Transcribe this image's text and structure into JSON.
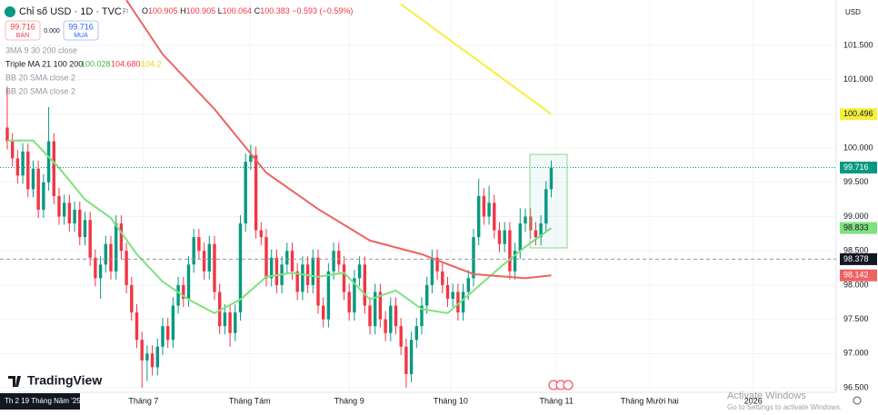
{
  "header": {
    "symbol": "Chỉ số USD · 1D · TVC",
    "quote": [
      "O",
      "100.905",
      "H",
      "100.905",
      "L",
      "100.064",
      "C",
      "100.383",
      "−0.593 (−0.59%)"
    ],
    "sell_price": "99.716",
    "sell_label": "BÁN",
    "spread": "0.000",
    "buy_price": "99.716",
    "buy_label": "MUA",
    "indicators": [
      "3MA 9 30 200 close",
      "Triple MA 21 100 200",
      "BB 20 SMA close 2",
      "BB 20 SMA close 2"
    ],
    "ma_values": [
      "100.028",
      "104.680",
      "104.2"
    ],
    "currency": "USD",
    "logo": "TradingView",
    "date_box": "Th 2 19 Tháng Năm '25",
    "watermark": [
      "Activate Windows",
      "Go to Settings to activate Windows."
    ]
  },
  "chart_data": {
    "type": "candlestick",
    "up_color": "#089981",
    "down_color": "#f23645",
    "ohlc": [
      [
        100.3,
        100.9,
        99.98,
        100.1
      ],
      [
        100.1,
        100.22,
        99.73,
        99.85
      ],
      [
        99.85,
        99.97,
        99.48,
        99.6
      ],
      [
        99.6,
        100.07,
        99.48,
        99.95
      ],
      [
        99.95,
        100.07,
        99.28,
        99.4
      ],
      [
        99.4,
        99.82,
        99.28,
        99.7
      ],
      [
        99.7,
        99.82,
        98.98,
        99.1
      ],
      [
        99.1,
        99.62,
        98.98,
        99.5
      ],
      [
        99.5,
        100.6,
        99.38,
        100.1
      ],
      [
        100.1,
        100.22,
        99.18,
        99.3
      ],
      [
        99.3,
        99.42,
        98.88,
        99.0
      ],
      [
        99.0,
        99.32,
        98.88,
        99.2
      ],
      [
        99.2,
        99.32,
        98.78,
        98.9
      ],
      [
        98.9,
        99.22,
        98.78,
        99.1
      ],
      [
        99.1,
        99.22,
        98.58,
        98.7
      ],
      [
        98.7,
        99.07,
        98.58,
        98.95
      ],
      [
        98.95,
        99.07,
        98.28,
        98.4
      ],
      [
        98.4,
        98.52,
        97.98,
        98.1
      ],
      [
        98.1,
        98.42,
        97.8,
        98.3
      ],
      [
        98.3,
        98.72,
        98.18,
        98.6
      ],
      [
        98.6,
        98.72,
        98.08,
        98.2
      ],
      [
        98.2,
        99.02,
        98.08,
        98.9
      ],
      [
        98.9,
        99.02,
        98.38,
        98.5
      ],
      [
        98.5,
        98.62,
        97.88,
        98.0
      ],
      [
        98.0,
        98.12,
        97.48,
        97.6
      ],
      [
        97.6,
        97.72,
        97.08,
        97.2
      ],
      [
        97.2,
        97.32,
        96.5,
        96.9
      ],
      [
        96.9,
        97.12,
        96.6,
        97.0
      ],
      [
        97.0,
        97.12,
        96.68,
        96.8
      ],
      [
        96.8,
        97.22,
        96.68,
        97.1
      ],
      [
        97.1,
        97.52,
        96.98,
        97.4
      ],
      [
        97.4,
        97.52,
        97.08,
        97.2
      ],
      [
        97.2,
        97.82,
        97.08,
        97.7
      ],
      [
        97.7,
        98.12,
        97.58,
        98.0
      ],
      [
        98.0,
        98.12,
        97.68,
        97.8
      ],
      [
        97.8,
        98.42,
        97.68,
        98.3
      ],
      [
        98.3,
        98.82,
        98.18,
        98.7
      ],
      [
        98.7,
        98.82,
        98.38,
        98.5
      ],
      [
        98.5,
        98.62,
        98.08,
        98.2
      ],
      [
        98.2,
        98.72,
        98.08,
        98.6
      ],
      [
        98.6,
        98.72,
        97.78,
        97.9
      ],
      [
        97.9,
        98.02,
        97.28,
        97.4
      ],
      [
        97.4,
        97.72,
        97.28,
        97.6
      ],
      [
        97.6,
        97.72,
        97.1,
        97.3
      ],
      [
        97.3,
        97.72,
        97.18,
        97.6
      ],
      [
        97.6,
        99.02,
        97.48,
        98.9
      ],
      [
        98.9,
        99.92,
        98.78,
        99.8
      ],
      [
        99.8,
        100.05,
        99.68,
        99.9
      ],
      [
        99.9,
        100.02,
        98.68,
        98.8
      ],
      [
        98.8,
        98.92,
        98.58,
        98.7
      ],
      [
        98.7,
        98.82,
        97.98,
        98.1
      ],
      [
        98.1,
        98.52,
        97.98,
        98.4
      ],
      [
        98.4,
        98.52,
        97.88,
        98.0
      ],
      [
        98.0,
        98.42,
        97.88,
        98.3
      ],
      [
        98.3,
        98.62,
        98.18,
        98.5
      ],
      [
        98.5,
        98.62,
        98.08,
        98.2
      ],
      [
        98.2,
        98.32,
        97.78,
        97.9
      ],
      [
        97.9,
        98.42,
        97.78,
        98.3
      ],
      [
        98.3,
        98.42,
        97.88,
        98.0
      ],
      [
        98.0,
        98.52,
        97.88,
        98.4
      ],
      [
        98.4,
        98.52,
        97.58,
        97.7
      ],
      [
        97.7,
        97.82,
        97.38,
        97.5
      ],
      [
        97.5,
        98.32,
        97.38,
        98.2
      ],
      [
        98.2,
        98.62,
        98.08,
        98.5
      ],
      [
        98.5,
        98.62,
        98.18,
        98.3
      ],
      [
        98.3,
        98.42,
        97.78,
        97.9
      ],
      [
        97.9,
        98.02,
        97.48,
        97.6
      ],
      [
        97.6,
        98.22,
        97.48,
        98.1
      ],
      [
        98.1,
        98.42,
        97.98,
        98.3
      ],
      [
        98.3,
        98.42,
        97.58,
        97.7
      ],
      [
        97.7,
        97.82,
        97.28,
        97.4
      ],
      [
        97.4,
        98.02,
        97.28,
        97.9
      ],
      [
        97.9,
        98.02,
        97.38,
        97.5
      ],
      [
        97.5,
        97.62,
        97.18,
        97.3
      ],
      [
        97.3,
        97.82,
        97.18,
        97.7
      ],
      [
        97.7,
        97.82,
        97.28,
        97.4
      ],
      [
        97.4,
        97.52,
        96.98,
        97.1
      ],
      [
        97.1,
        97.22,
        96.5,
        96.7
      ],
      [
        96.7,
        97.32,
        96.58,
        97.2
      ],
      [
        97.2,
        97.52,
        97.08,
        97.4
      ],
      [
        97.4,
        97.82,
        97.28,
        97.7
      ],
      [
        97.7,
        98.12,
        97.58,
        98.0
      ],
      [
        98.0,
        98.52,
        97.88,
        98.4
      ],
      [
        98.4,
        98.52,
        98.08,
        98.2
      ],
      [
        98.2,
        98.32,
        97.88,
        98.0
      ],
      [
        98.0,
        98.12,
        97.68,
        97.8
      ],
      [
        97.8,
        98.02,
        97.68,
        97.9
      ],
      [
        97.9,
        98.02,
        97.48,
        97.6
      ],
      [
        97.6,
        98.02,
        97.48,
        97.9
      ],
      [
        97.9,
        98.22,
        97.78,
        98.1
      ],
      [
        98.1,
        98.82,
        97.98,
        98.7
      ],
      [
        98.7,
        99.55,
        98.58,
        99.3
      ],
      [
        99.3,
        99.42,
        98.88,
        99.0
      ],
      [
        99.0,
        99.45,
        98.88,
        99.2
      ],
      [
        99.2,
        99.32,
        98.68,
        98.8
      ],
      [
        98.8,
        98.92,
        98.48,
        98.6
      ],
      [
        98.6,
        98.92,
        98.48,
        98.8
      ],
      [
        98.8,
        98.92,
        98.08,
        98.2
      ],
      [
        98.2,
        98.62,
        98.08,
        98.5
      ],
      [
        98.5,
        99.12,
        98.38,
        98.9
      ],
      [
        98.9,
        99.12,
        98.78,
        99.0
      ],
      [
        99.0,
        99.12,
        98.68,
        98.8
      ],
      [
        98.8,
        98.92,
        98.58,
        98.7
      ],
      [
        98.7,
        99.02,
        98.58,
        98.9
      ],
      [
        98.9,
        99.52,
        98.78,
        99.4
      ],
      [
        99.4,
        99.82,
        99.28,
        99.716
      ]
    ],
    "lines": [
      {
        "color": "#7ee27e",
        "x": [
          0,
          5,
          10,
          15,
          20,
          25,
          30,
          35,
          40,
          45,
          50,
          55,
          60,
          65,
          70,
          75,
          80,
          85,
          90,
          95,
          100,
          105
        ],
        "values": [
          100.11,
          100.11,
          99.71,
          99.25,
          98.98,
          98.45,
          98.05,
          97.79,
          97.59,
          97.79,
          98.12,
          98.18,
          98.12,
          98.18,
          97.79,
          97.92,
          97.65,
          97.59,
          97.92,
          98.25,
          98.56,
          98.833
        ]
      },
      {
        "color": "#ef6262",
        "x": [
          23,
          30,
          40,
          50,
          60,
          70,
          80,
          90,
          100,
          105
        ],
        "values": [
          102.16,
          101.37,
          100.57,
          99.64,
          99.11,
          98.65,
          98.45,
          98.16,
          98.1,
          98.142
        ]
      },
      {
        "color": "#f5ef3d",
        "x": [
          76,
          105
        ],
        "values": [
          102.1,
          100.496
        ]
      }
    ],
    "crosshair": 98.378,
    "xlim": [
      -1.4,
      160
    ],
    "ylim": [
      96.434,
      102.163
    ],
    "xticks": [
      {
        "value": 26.3,
        "label": "Tháng 7"
      },
      {
        "value": 46.8,
        "label": "Tháng Tám"
      },
      {
        "value": 66,
        "label": "Tháng 9"
      },
      {
        "value": 85.6,
        "label": "Tháng 10"
      },
      {
        "value": 106,
        "label": "Tháng 11"
      },
      {
        "value": 124,
        "label": "Tháng Mười hai"
      },
      {
        "value": 144,
        "label": "2026"
      }
    ],
    "yticks": [
      {
        "value": 96.5,
        "label": "96.500"
      },
      {
        "value": 97,
        "label": "97.000"
      },
      {
        "value": 97.5,
        "label": "97.500"
      },
      {
        "value": 98,
        "label": "98.000"
      },
      {
        "value": 98.5,
        "label": "98.500"
      },
      {
        "value": 99,
        "label": "99.000"
      },
      {
        "value": 99.5,
        "label": "99.500"
      },
      {
        "value": 100,
        "label": "100.000"
      },
      {
        "value": 100.5,
        "label": "100.500"
      },
      {
        "value": 101,
        "label": "101.000"
      },
      {
        "value": 101.5,
        "label": "101.500"
      }
    ]
  }
}
